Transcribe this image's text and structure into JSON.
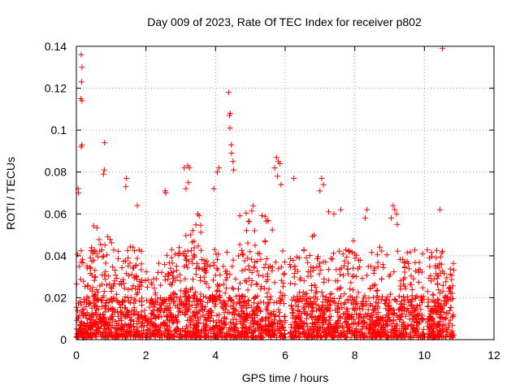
{
  "chart_data": {
    "type": "scatter",
    "title": "Day 009 of 2023, Rate Of TEC Index for receiver p802",
    "xlabel": "GPS time / hours",
    "ylabel": "ROTI / TECUs",
    "xlim": [
      0,
      12
    ],
    "ylim": [
      0,
      0.14
    ],
    "xticks": [
      0,
      2,
      4,
      6,
      8,
      10,
      12
    ],
    "yticks": [
      0,
      0.02,
      0.04,
      0.06,
      0.08,
      0.1,
      0.12,
      0.14
    ],
    "xtick_labels": [
      "0",
      "2",
      "4",
      "6",
      "8",
      "10",
      "12"
    ],
    "ytick_labels": [
      "0",
      "0.02",
      "0.04",
      "0.06",
      "0.08",
      "0.1",
      "0.12",
      "0.14"
    ],
    "grid": true,
    "marker": "plus",
    "color": "#ff0000",
    "series": [
      {
        "name": "ROTI",
        "x_range": [
          0,
          10.85
        ],
        "typical_range": [
          0.0,
          0.03
        ],
        "notable_points": [
          {
            "x": 0.14,
            "y": 0.136
          },
          {
            "x": 0.16,
            "y": 0.13
          },
          {
            "x": 0.15,
            "y": 0.123
          },
          {
            "x": 0.13,
            "y": 0.115
          },
          {
            "x": 0.16,
            "y": 0.114
          },
          {
            "x": 0.14,
            "y": 0.092
          },
          {
            "x": 0.16,
            "y": 0.093
          },
          {
            "x": 0.05,
            "y": 0.072
          },
          {
            "x": 0.06,
            "y": 0.07
          },
          {
            "x": 0.81,
            "y": 0.094
          },
          {
            "x": 0.8,
            "y": 0.081
          },
          {
            "x": 0.78,
            "y": 0.079
          },
          {
            "x": 1.44,
            "y": 0.077
          },
          {
            "x": 1.42,
            "y": 0.073
          },
          {
            "x": 1.75,
            "y": 0.064
          },
          {
            "x": 2.55,
            "y": 0.071
          },
          {
            "x": 2.57,
            "y": 0.07
          },
          {
            "x": 3.1,
            "y": 0.082
          },
          {
            "x": 3.2,
            "y": 0.083
          },
          {
            "x": 3.25,
            "y": 0.082
          },
          {
            "x": 3.22,
            "y": 0.075
          },
          {
            "x": 3.15,
            "y": 0.072
          },
          {
            "x": 3.95,
            "y": 0.072
          },
          {
            "x": 4.05,
            "y": 0.08
          },
          {
            "x": 4.1,
            "y": 0.082
          },
          {
            "x": 4.38,
            "y": 0.118
          },
          {
            "x": 4.42,
            "y": 0.108
          },
          {
            "x": 4.4,
            "y": 0.107
          },
          {
            "x": 4.41,
            "y": 0.101
          },
          {
            "x": 4.45,
            "y": 0.093
          },
          {
            "x": 4.46,
            "y": 0.089
          },
          {
            "x": 4.5,
            "y": 0.085
          },
          {
            "x": 4.52,
            "y": 0.081
          },
          {
            "x": 5.75,
            "y": 0.087
          },
          {
            "x": 5.8,
            "y": 0.085
          },
          {
            "x": 5.85,
            "y": 0.084
          },
          {
            "x": 5.7,
            "y": 0.082
          },
          {
            "x": 5.78,
            "y": 0.078
          },
          {
            "x": 5.88,
            "y": 0.074
          },
          {
            "x": 6.25,
            "y": 0.077
          },
          {
            "x": 7.05,
            "y": 0.077
          },
          {
            "x": 7.1,
            "y": 0.074
          },
          {
            "x": 7.0,
            "y": 0.071
          },
          {
            "x": 7.25,
            "y": 0.061
          },
          {
            "x": 7.4,
            "y": 0.06
          },
          {
            "x": 7.6,
            "y": 0.062
          },
          {
            "x": 8.35,
            "y": 0.062
          },
          {
            "x": 8.3,
            "y": 0.058
          },
          {
            "x": 9.1,
            "y": 0.064
          },
          {
            "x": 9.15,
            "y": 0.062
          },
          {
            "x": 9.2,
            "y": 0.06
          },
          {
            "x": 9.05,
            "y": 0.058
          },
          {
            "x": 9.22,
            "y": 0.055
          },
          {
            "x": 10.45,
            "y": 0.062
          },
          {
            "x": 10.52,
            "y": 0.139
          }
        ],
        "spread_points": [
          {
            "x": 0.3,
            "y": 0.05
          },
          {
            "x": 0.6,
            "y": 0.06
          },
          {
            "x": 0.9,
            "y": 0.05
          },
          {
            "x": 1.2,
            "y": 0.045
          },
          {
            "x": 1.7,
            "y": 0.055
          },
          {
            "x": 2.2,
            "y": 0.03
          },
          {
            "x": 2.8,
            "y": 0.045
          },
          {
            "x": 3.3,
            "y": 0.055
          },
          {
            "x": 3.6,
            "y": 0.06
          },
          {
            "x": 4.0,
            "y": 0.04
          },
          {
            "x": 4.8,
            "y": 0.062
          },
          {
            "x": 5.1,
            "y": 0.065
          },
          {
            "x": 5.5,
            "y": 0.06
          },
          {
            "x": 6.4,
            "y": 0.048
          },
          {
            "x": 6.8,
            "y": 0.05
          },
          {
            "x": 7.9,
            "y": 0.048
          },
          {
            "x": 8.6,
            "y": 0.045
          },
          {
            "x": 9.6,
            "y": 0.045
          },
          {
            "x": 10.3,
            "y": 0.04
          },
          {
            "x": 10.8,
            "y": 0.03
          }
        ],
        "gaps": [
          [
            6.0,
            6.13
          ],
          [
            9.98,
            10.08
          ]
        ]
      }
    ]
  }
}
